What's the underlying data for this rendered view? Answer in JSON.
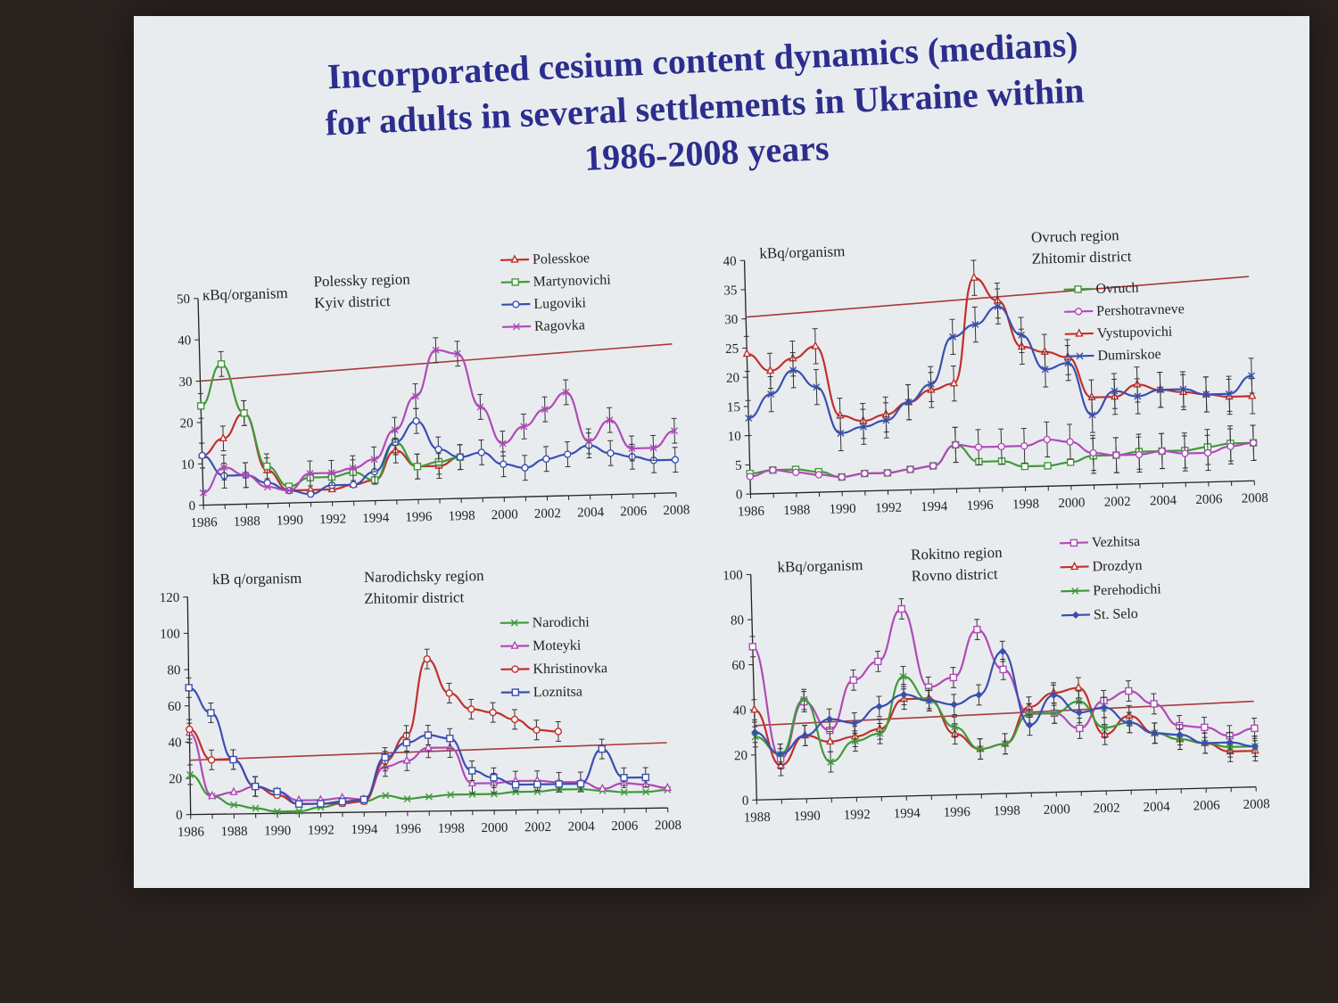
{
  "title": {
    "line1": "Incorporated cesium content dynamics (medians)",
    "line2": "for adults in several settlements in Ukraine within",
    "line3": "1986-2008 years"
  },
  "chart_data": [
    {
      "type": "line",
      "ylabel": "кBq/organism",
      "region": "Polessky region",
      "district": "Kyiv district",
      "x": [
        1986,
        1987,
        1988,
        1989,
        1990,
        1991,
        1992,
        1993,
        1994,
        1995,
        1996,
        1997,
        1998,
        1999,
        2000,
        2001,
        2002,
        2003,
        2004,
        2005,
        2006,
        2007,
        2008
      ],
      "xticks": [
        "1986",
        "1988",
        "1990",
        "1992",
        "1994",
        "1996",
        "1998",
        "2000",
        "2002",
        "2004",
        "2006",
        "2008"
      ],
      "ylim": [
        0,
        50
      ],
      "yticks": [
        "0",
        "10",
        "20",
        "30",
        "40",
        "50"
      ],
      "threshold": {
        "from": 30,
        "to": 36,
        "color": "#a83a3a"
      },
      "series": [
        {
          "name": "Polesskoe",
          "color": "#c0302b",
          "marker": "triangle",
          "values": [
            12,
            16,
            22,
            8,
            3,
            3,
            3,
            4,
            5,
            12,
            8,
            8,
            10,
            null,
            null,
            null,
            null,
            null,
            null,
            null,
            null,
            null,
            null
          ]
        },
        {
          "name": "Martynovichi",
          "color": "#3f9a3a",
          "marker": "square",
          "values": [
            24,
            34,
            22,
            9,
            4,
            6,
            6,
            7,
            5,
            14,
            8,
            9,
            10,
            null,
            null,
            null,
            null,
            null,
            null,
            null,
            null,
            null,
            null
          ]
        },
        {
          "name": "Lugoviki",
          "color": "#3a4fb0",
          "marker": "circle",
          "values": [
            12,
            7,
            7,
            5,
            3,
            2,
            4,
            4,
            7,
            14,
            19,
            12,
            10,
            11,
            8,
            7,
            9,
            10,
            12,
            10,
            9,
            8,
            8
          ]
        },
        {
          "name": "Ragovka",
          "color": "#b04ab8",
          "marker": "cross",
          "values": [
            3,
            9,
            7,
            4,
            3,
            7,
            7,
            8,
            10,
            17,
            25,
            36,
            35,
            22,
            13,
            17,
            21,
            25,
            13,
            18,
            11,
            11,
            15
          ]
        }
      ]
    },
    {
      "type": "line",
      "ylabel": "kBq/organism",
      "region": "Ovruch region",
      "district": "Zhitomir district",
      "x": [
        1986,
        1987,
        1988,
        1989,
        1990,
        1991,
        1992,
        1993,
        1994,
        1995,
        1996,
        1997,
        1998,
        1999,
        2000,
        2001,
        2002,
        2003,
        2004,
        2005,
        2006,
        2007,
        2008
      ],
      "xticks": [
        "1986",
        "1988",
        "1990",
        "1992",
        "1994",
        "1996",
        "1998",
        "2000",
        "2002",
        "2004",
        "2006",
        "2008"
      ],
      "ylim": [
        0,
        40
      ],
      "yticks": [
        "0",
        "5",
        "10",
        "15",
        "20",
        "25",
        "30",
        "35",
        "40"
      ],
      "threshold": {
        "from": 30.3,
        "to": 35,
        "color": "#a83a3a"
      },
      "series": [
        {
          "name": "Ovruch",
          "color": "#3f9a3a",
          "marker": "square",
          "values": [
            3.5,
            4,
            4,
            3.5,
            2.5,
            3,
            3,
            3.5,
            4,
            7.5,
            4.5,
            4.5,
            3.5,
            3.5,
            4,
            5,
            5,
            5.5,
            5.5,
            5.5,
            6,
            6.5,
            6.5
          ]
        },
        {
          "name": "Pershotravneve",
          "color": "#b04ab8",
          "marker": "circle",
          "values": [
            3,
            4,
            3.5,
            3,
            2.5,
            3,
            3,
            3.5,
            4,
            7.5,
            7,
            7,
            7,
            8,
            7.5,
            5.5,
            5,
            5,
            5.5,
            5,
            5,
            6,
            6.5
          ]
        },
        {
          "name": "Vystupovichi",
          "color": "#c0302b",
          "marker": "triangle",
          "values": [
            24,
            21,
            23,
            25,
            13,
            12,
            13,
            15,
            17,
            18,
            36,
            32,
            24,
            23,
            22,
            15,
            15,
            17,
            16,
            15.5,
            15,
            14.5,
            14.5
          ]
        },
        {
          "name": "Dumirskoe",
          "color": "#3a4fb0",
          "marker": "cross",
          "values": [
            13,
            17,
            21,
            18,
            10,
            11,
            12,
            15,
            18,
            26,
            28,
            31,
            26,
            20,
            21,
            12,
            16,
            15,
            16,
            16,
            15,
            15,
            18
          ]
        }
      ]
    },
    {
      "type": "line",
      "ylabel": "kB q/organism",
      "region": "Narodichsky region",
      "district": "Zhitomir district",
      "x": [
        1986,
        1987,
        1988,
        1989,
        1990,
        1991,
        1992,
        1993,
        1994,
        1995,
        1996,
        1997,
        1998,
        1999,
        2000,
        2001,
        2002,
        2003,
        2004,
        2005,
        2006,
        2007,
        2008
      ],
      "xticks": [
        "1986",
        "1988",
        "1990",
        "1992",
        "1994",
        "1996",
        "1998",
        "2000",
        "2002",
        "2004",
        "2006",
        "2008"
      ],
      "ylim": [
        0,
        120
      ],
      "yticks": [
        "0",
        "20",
        "40",
        "60",
        "80",
        "100",
        "120"
      ],
      "threshold": {
        "from": 30,
        "to": 36,
        "color": "#a83a3a"
      },
      "series": [
        {
          "name": "Narodichi",
          "color": "#3f9a3a",
          "marker": "cross",
          "values": [
            22,
            10,
            5,
            3,
            1,
            1,
            3,
            5,
            6,
            9,
            7,
            8,
            9,
            9,
            9,
            10,
            10,
            11,
            11,
            10,
            9,
            9,
            10
          ]
        },
        {
          "name": "Moteyki",
          "color": "#b04ab8",
          "marker": "triangle",
          "values": [
            45,
            10,
            12,
            15,
            12,
            7,
            7,
            8,
            7,
            25,
            28,
            35,
            35,
            15,
            15,
            16,
            16,
            15,
            15,
            11,
            14,
            13,
            11
          ]
        },
        {
          "name": "Khristinovka",
          "color": "#c0302b",
          "marker": "circle",
          "values": [
            47,
            30,
            30,
            15,
            10,
            5,
            5,
            5,
            6,
            28,
            42,
            84,
            65,
            56,
            54,
            50,
            44,
            43,
            null,
            null,
            null,
            null,
            null
          ]
        },
        {
          "name": "Loznitsa",
          "color": "#3a4fb0",
          "marker": "square",
          "values": [
            70,
            56,
            30,
            15,
            12,
            5,
            5,
            6,
            7,
            30,
            38,
            42,
            40,
            22,
            18,
            14,
            14,
            14,
            14,
            33,
            17,
            17,
            null
          ]
        }
      ]
    },
    {
      "type": "line",
      "ylabel": "kBq/organism",
      "region": "Rokitno region",
      "district": "Rovno district",
      "x": [
        1988,
        1989,
        1990,
        1991,
        1992,
        1993,
        1994,
        1995,
        1996,
        1997,
        1998,
        1999,
        2000,
        2001,
        2002,
        2003,
        2004,
        2005,
        2006,
        2007,
        2008
      ],
      "xticks": [
        "1988",
        "1990",
        "1992",
        "1994",
        "1996",
        "1998",
        "2000",
        "2002",
        "2004",
        "2006",
        "2008"
      ],
      "ylim": [
        0,
        100
      ],
      "yticks": [
        "0",
        "20",
        "40",
        "60",
        "80",
        "100"
      ],
      "threshold": {
        "from": 33,
        "to": 38,
        "color": "#a83a3a"
      },
      "series": [
        {
          "name": "Vezhitsa",
          "color": "#b04ab8",
          "marker": "square",
          "values": [
            68,
            18,
            43,
            30,
            52,
            60,
            83,
            48,
            52,
            73,
            55,
            35,
            35,
            28,
            40,
            44,
            38,
            28,
            27,
            23,
            26
          ]
        },
        {
          "name": "Drozdyn",
          "color": "#c0302b",
          "marker": "triangle",
          "values": [
            40,
            15,
            28,
            25,
            27,
            30,
            43,
            43,
            27,
            20,
            22,
            38,
            44,
            46,
            25,
            33,
            25,
            22,
            20,
            16,
            16
          ]
        },
        {
          "name": "Perehodichi",
          "color": "#3f9a3a",
          "marker": "cross",
          "values": [
            28,
            20,
            44,
            16,
            25,
            28,
            53,
            42,
            30,
            20,
            22,
            35,
            35,
            40,
            28,
            30,
            25,
            22,
            20,
            18,
            18
          ]
        },
        {
          "name": "St. Selo",
          "color": "#3a4fb0",
          "marker": "diamond",
          "values": [
            30,
            20,
            28,
            35,
            33,
            40,
            45,
            42,
            40,
            44,
            63,
            30,
            43,
            35,
            37,
            30,
            25,
            24,
            20,
            20,
            18
          ]
        }
      ]
    }
  ]
}
